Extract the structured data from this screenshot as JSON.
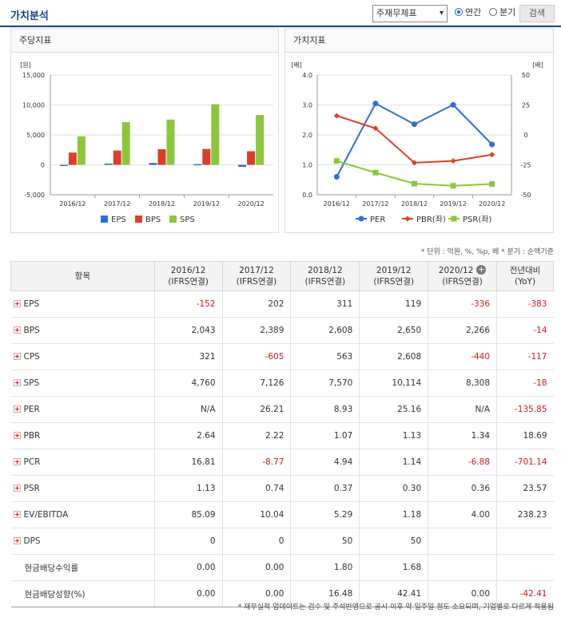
{
  "header": {
    "title": "가치분석",
    "select_value": "주재무제표",
    "radio_annual": "연간",
    "radio_quarter": "분기",
    "search_label": "검색"
  },
  "left_panel": {
    "title": "주당지표"
  },
  "right_panel": {
    "title": "가치지표"
  },
  "colors": {
    "eps": "#2f6fd4",
    "bps": "#d9402a",
    "sps": "#8cc63e",
    "per": "#2f6fd4",
    "pbr": "#d9402a",
    "psr": "#8cc63e"
  },
  "chart_data": [
    {
      "type": "bar",
      "categories": [
        "2016/12",
        "2017/12",
        "2018/12",
        "2019/12",
        "2020/12"
      ],
      "ylabel": "[원]",
      "ylim": [
        -5000,
        15000
      ],
      "yticks": [
        "15,000",
        "10,000",
        "5,000",
        "0",
        "-5,000"
      ],
      "series": [
        {
          "name": "EPS",
          "values": [
            -152,
            202,
            311,
            119,
            -336
          ]
        },
        {
          "name": "BPS",
          "values": [
            2043,
            2389,
            2608,
            2650,
            2266
          ]
        },
        {
          "name": "SPS",
          "values": [
            4760,
            7126,
            7570,
            10114,
            8308
          ]
        }
      ],
      "legend": "bottom"
    },
    {
      "type": "line",
      "categories": [
        "2016/12",
        "2017/12",
        "2018/12",
        "2019/12",
        "2020/12"
      ],
      "ylabel_left": "[배]",
      "ylabel_right": "[배]",
      "ylim_left": [
        0,
        4
      ],
      "ylim_right": [
        -50,
        50
      ],
      "yticks_left": [
        "4.0",
        "3.0",
        "2.0",
        "1.0",
        "0.0"
      ],
      "yticks_right": [
        "50",
        "25",
        "0",
        "-25",
        "-50"
      ],
      "series": [
        {
          "name": "PER",
          "axis": "right",
          "values": [
            -35,
            26.21,
            8.93,
            25.16,
            -8
          ]
        },
        {
          "name": "PBR(좌)",
          "axis": "left",
          "values": [
            2.64,
            2.22,
            1.07,
            1.13,
            1.34
          ]
        },
        {
          "name": "PSR(좌)",
          "axis": "left",
          "values": [
            1.13,
            0.74,
            0.37,
            0.3,
            0.36
          ]
        }
      ],
      "legend": "bottom"
    }
  ],
  "unit_note": "* 단위 : 억원, %, %p, 배    * 분기 : 순액기준",
  "table": {
    "columns": [
      "항목",
      "2016/12\n(IFRS연결)",
      "2017/12\n(IFRS연결)",
      "2018/12\n(IFRS연결)",
      "2019/12\n(IFRS연결)",
      "2020/12\n(IFRS연결)",
      "전년대비\n(YoY)"
    ],
    "col_labels": {
      "item": "항목",
      "c1a": "2016/12",
      "c1b": "(IFRS연결)",
      "c2a": "2017/12",
      "c2b": "(IFRS연결)",
      "c3a": "2018/12",
      "c3b": "(IFRS연결)",
      "c4a": "2019/12",
      "c4b": "(IFRS연결)",
      "c5a": "2020/12",
      "c5b": "(IFRS연결)",
      "c6a": "전년대비",
      "c6b": "(YoY)"
    },
    "rows": [
      {
        "label": "EPS",
        "expand": true,
        "values": [
          "-152",
          "202",
          "311",
          "119",
          "-336",
          "-383"
        ]
      },
      {
        "label": "BPS",
        "expand": true,
        "values": [
          "2,043",
          "2,389",
          "2,608",
          "2,650",
          "2,266",
          "-14"
        ]
      },
      {
        "label": "CPS",
        "expand": true,
        "values": [
          "321",
          "-605",
          "563",
          "2,608",
          "-440",
          "-117"
        ]
      },
      {
        "label": "SPS",
        "expand": true,
        "values": [
          "4,760",
          "7,126",
          "7,570",
          "10,114",
          "8,308",
          "-18"
        ]
      },
      {
        "label": "PER",
        "expand": true,
        "values": [
          "N/A",
          "26.21",
          "8.93",
          "25.16",
          "N/A",
          "-135.85"
        ]
      },
      {
        "label": "PBR",
        "expand": true,
        "values": [
          "2.64",
          "2.22",
          "1.07",
          "1.13",
          "1.34",
          "18.69"
        ]
      },
      {
        "label": "PCR",
        "expand": true,
        "values": [
          "16.81",
          "-8.77",
          "4.94",
          "1.14",
          "-6.88",
          "-701.14"
        ]
      },
      {
        "label": "PSR",
        "expand": true,
        "values": [
          "1.13",
          "0.74",
          "0.37",
          "0.30",
          "0.36",
          "23.57"
        ]
      },
      {
        "label": "EV/EBITDA",
        "expand": true,
        "values": [
          "85.09",
          "10.04",
          "5.29",
          "1.18",
          "4.00",
          "238.23"
        ]
      },
      {
        "label": "DPS",
        "expand": true,
        "values": [
          "0",
          "0",
          "50",
          "50",
          "",
          ""
        ]
      },
      {
        "label": "현금배당수익률",
        "expand": false,
        "values": [
          "0.00",
          "0.00",
          "1.80",
          "1.68",
          "",
          ""
        ]
      },
      {
        "label": "현금배당성향(%)",
        "expand": false,
        "values": [
          "0.00",
          "0.00",
          "16.48",
          "42.41",
          "0.00",
          "-42.41"
        ]
      }
    ]
  },
  "footer_note": "* 재무실적 업데이트는 검수 및 주석반영으로 공시 이후 약 일주일 정도 소요되며, 기업별로 다르게 적용됨"
}
